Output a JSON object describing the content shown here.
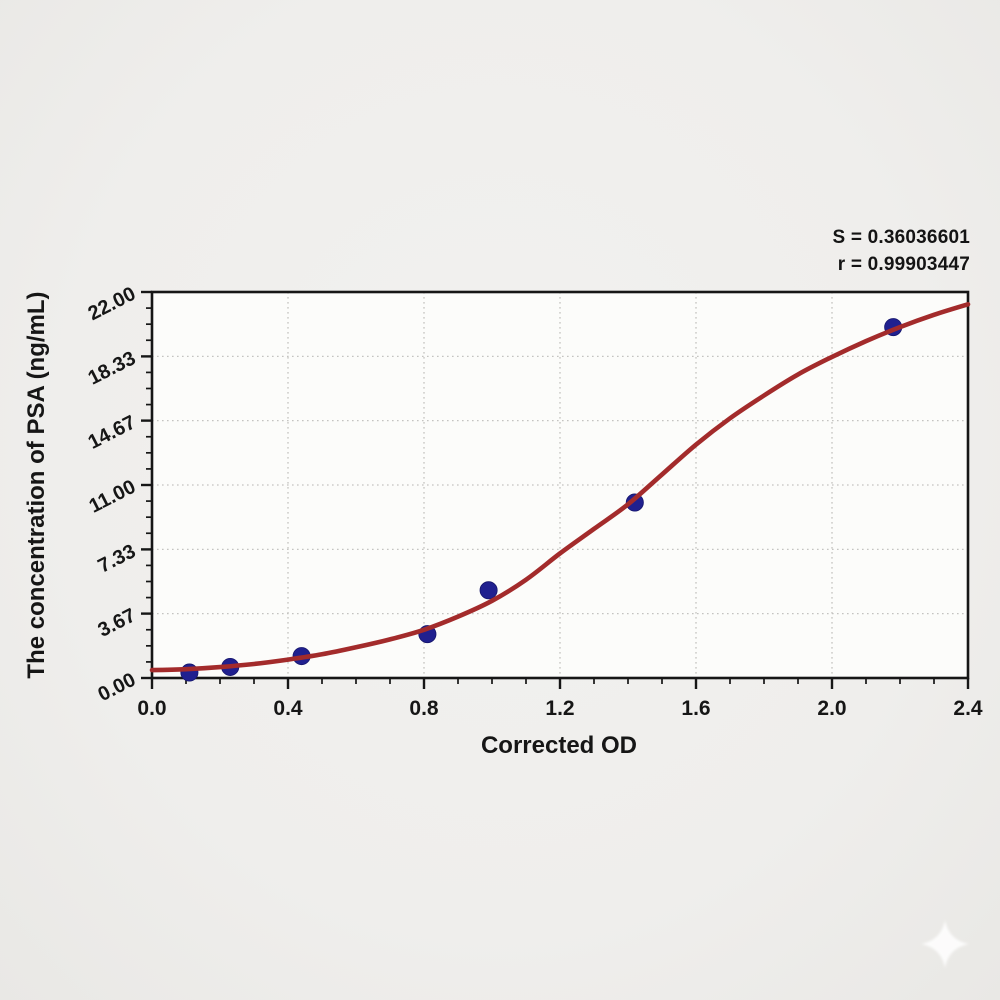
{
  "page": {
    "background_color": "#efeeec",
    "plot_background_color": "#fcfcfa"
  },
  "stats": {
    "lines": [
      "S = 0.36036601",
      "r = 0.99903447"
    ]
  },
  "chart_data": {
    "type": "scatter",
    "title": "",
    "xlabel": "Corrected OD",
    "ylabel": "The concentration of PSA (ng/mL)",
    "xlim": [
      0.0,
      2.4
    ],
    "ylim": [
      0.0,
      22.0
    ],
    "x_tick_values": [
      0.0,
      0.4,
      0.8,
      1.2,
      1.6,
      2.0,
      2.4
    ],
    "x_tick_labels": [
      "0.0",
      "0.4",
      "0.8",
      "1.2",
      "1.6",
      "2.0",
      "2.4"
    ],
    "x_minor_tick_step": 0.1,
    "y_tick_values": [
      0.0,
      3.67,
      7.33,
      11.0,
      14.67,
      18.33,
      22.0
    ],
    "y_tick_labels": [
      "0.00",
      "3.67",
      "7.33",
      "11.00",
      "14.67",
      "18.33",
      "22.00"
    ],
    "y_minor_divisions": 4,
    "grid": {
      "show": true,
      "style": "dotted",
      "color": "#c4c3c0",
      "at": "major-ticks"
    },
    "frame_color": "#161616",
    "legend": "none",
    "annotations": [
      "S = 0.36036601",
      "r = 0.99903447"
    ],
    "series": [
      {
        "name": "standard points",
        "type": "scatter",
        "color": "#20208f",
        "marker": "circle",
        "points": [
          [
            0.11,
            0.31
          ],
          [
            0.23,
            0.63
          ],
          [
            0.44,
            1.25
          ],
          [
            0.81,
            2.5
          ],
          [
            0.99,
            5.0
          ],
          [
            1.42,
            10.0
          ],
          [
            2.18,
            20.0
          ]
        ]
      },
      {
        "name": "4PL fitted curve",
        "type": "line",
        "color": "#a32b2b",
        "points": [
          [
            0.0,
            0.45
          ],
          [
            0.1,
            0.5
          ],
          [
            0.2,
            0.62
          ],
          [
            0.3,
            0.8
          ],
          [
            0.4,
            1.05
          ],
          [
            0.5,
            1.35
          ],
          [
            0.6,
            1.75
          ],
          [
            0.7,
            2.2
          ],
          [
            0.8,
            2.75
          ],
          [
            0.9,
            3.5
          ],
          [
            1.0,
            4.4
          ],
          [
            1.1,
            5.6
          ],
          [
            1.2,
            7.1
          ],
          [
            1.3,
            8.5
          ],
          [
            1.4,
            9.9
          ],
          [
            1.5,
            11.6
          ],
          [
            1.6,
            13.3
          ],
          [
            1.7,
            14.8
          ],
          [
            1.8,
            16.1
          ],
          [
            1.9,
            17.3
          ],
          [
            2.0,
            18.3
          ],
          [
            2.1,
            19.2
          ],
          [
            2.2,
            20.0
          ],
          [
            2.3,
            20.7
          ],
          [
            2.4,
            21.3
          ]
        ]
      }
    ]
  },
  "watermark": {
    "icon": "sparkle-icon"
  }
}
